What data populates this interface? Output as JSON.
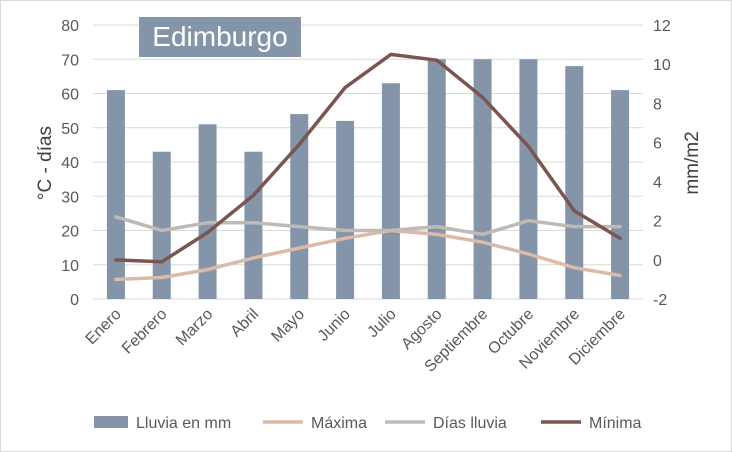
{
  "chart_data": {
    "type": "bar",
    "title": "Edimburgo",
    "categories": [
      "Enero",
      "Febrero",
      "Marzo",
      "Abril",
      "Mayo",
      "Junio",
      "Julio",
      "Agosto",
      "Septiembre",
      "Octubre",
      "Noviembre",
      "Diciembre"
    ],
    "ylabel_left": "°C - días",
    "ylabel_right": "mm/m2",
    "ylim_left": [
      0,
      80
    ],
    "yticks_left": [
      "0",
      "10",
      "20",
      "30",
      "40",
      "50",
      "60",
      "70",
      "80"
    ],
    "ylim_right": [
      -2,
      12
    ],
    "yticks_right": [
      "-2",
      "0",
      "2",
      "4",
      "6",
      "8",
      "10",
      "12"
    ],
    "grid": true,
    "legend_position": "bottom",
    "series": [
      {
        "name": "Lluvia en mm",
        "kind": "bar",
        "axis": "left",
        "color": "#8495aa",
        "values": [
          61,
          43,
          51,
          43,
          54,
          52,
          63,
          70,
          70,
          70,
          68,
          61
        ]
      },
      {
        "name": "Máxima",
        "kind": "line",
        "axis": "right",
        "color": "#dbbba8",
        "values": [
          -1.0,
          -0.9,
          -0.5,
          0.1,
          0.6,
          1.1,
          1.5,
          1.3,
          0.9,
          0.3,
          -0.4,
          -0.8
        ]
      },
      {
        "name": "Días lluvia",
        "kind": "line",
        "axis": "right",
        "color": "#c0bab4",
        "values": [
          2.2,
          1.5,
          1.9,
          1.9,
          1.7,
          1.5,
          1.5,
          1.7,
          1.3,
          2.0,
          1.7,
          1.7
        ]
      },
      {
        "name": "Mínima",
        "kind": "line",
        "axis": "right",
        "color": "#7b5550",
        "values": [
          0.0,
          -0.1,
          1.4,
          3.3,
          5.9,
          8.8,
          10.5,
          10.2,
          8.3,
          5.8,
          2.5,
          1.1
        ]
      }
    ]
  }
}
